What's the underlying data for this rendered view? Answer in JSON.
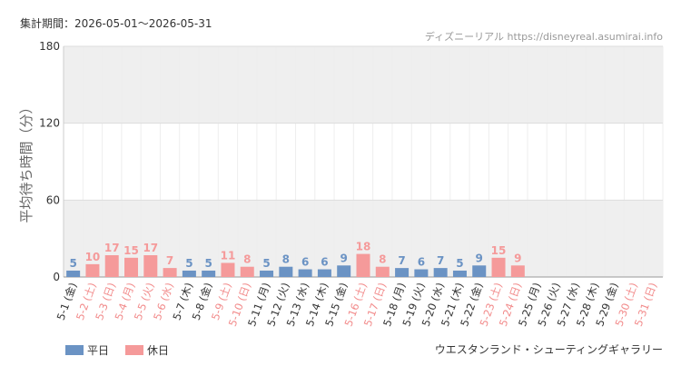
{
  "chart_data": {
    "type": "bar",
    "header": "集計期間：2026-05-01〜2026-05-31",
    "source": "ディズニーリアル https://disneyreal.asumirai.info",
    "footer": "ウエスタンランド・シューティングギャラリー",
    "y_label": "平均待ち時間（分）",
    "ylim": [
      0,
      180
    ],
    "yticks": [
      0,
      60,
      120,
      180
    ],
    "bands": true,
    "legend": "bottom-left",
    "categories": [
      "5-1 (金)",
      "5-2 (土)",
      "5-3 (日)",
      "5-4 (月)",
      "5-5 (火)",
      "5-6 (水)",
      "5-7 (木)",
      "5-8 (金)",
      "5-9 (土)",
      "5-10 (日)",
      "5-11 (月)",
      "5-12 (火)",
      "5-13 (水)",
      "5-14 (木)",
      "5-15 (金)",
      "5-16 (土)",
      "5-17 (日)",
      "5-18 (月)",
      "5-19 (火)",
      "5-20 (水)",
      "5-21 (木)",
      "5-22 (金)",
      "5-23 (土)",
      "5-24 (日)",
      "5-25 (月)",
      "5-26 (火)",
      "5-27 (水)",
      "5-28 (木)",
      "5-29 (金)",
      "5-30 (土)",
      "5-31 (日)"
    ],
    "category_colors": [
      "#333",
      "#f28b8b",
      "#f28b8b",
      "#f28b8b",
      "#f28b8b",
      "#f28b8b",
      "#333",
      "#333",
      "#f28b8b",
      "#f28b8b",
      "#333",
      "#333",
      "#333",
      "#333",
      "#333",
      "#f28b8b",
      "#f28b8b",
      "#333",
      "#333",
      "#333",
      "#333",
      "#333",
      "#f28b8b",
      "#f28b8b",
      "#333",
      "#333",
      "#333",
      "#333",
      "#333",
      "#f28b8b",
      "#f28b8b"
    ],
    "series": [
      {
        "name": "平日",
        "color": "#6b93c4",
        "values": [
          5,
          null,
          null,
          null,
          null,
          null,
          5,
          5,
          null,
          null,
          5,
          8,
          6,
          6,
          9,
          null,
          null,
          7,
          6,
          7,
          5,
          9,
          null,
          null,
          null,
          null,
          null,
          null,
          null,
          null,
          null
        ]
      },
      {
        "name": "休日",
        "color": "#f59a9a",
        "values": [
          null,
          10,
          17,
          15,
          17,
          7,
          null,
          null,
          11,
          8,
          null,
          null,
          null,
          null,
          null,
          18,
          8,
          null,
          null,
          null,
          null,
          null,
          15,
          9,
          null,
          null,
          null,
          null,
          null,
          null,
          null
        ]
      }
    ]
  }
}
